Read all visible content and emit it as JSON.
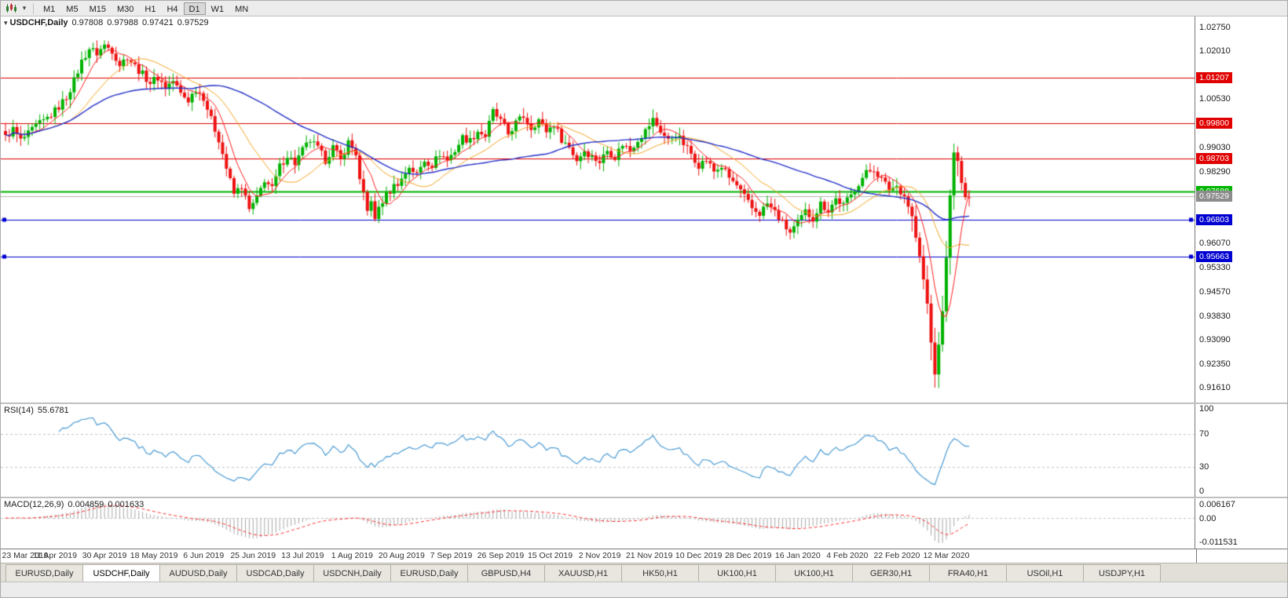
{
  "toolbar": {
    "icons": [
      {
        "name": "chart-type-icon"
      },
      {
        "name": "chevron-down-icon",
        "glyph": "▾"
      }
    ],
    "timeframes": [
      "M1",
      "M5",
      "M15",
      "M30",
      "H1",
      "H4",
      "D1",
      "W1",
      "MN"
    ],
    "active_timeframe": "D1"
  },
  "price_panel": {
    "symbol": "USDCHF,Daily",
    "marker_glyph": "▾",
    "ohlc": {
      "open": "0.97808",
      "high": "0.97988",
      "low": "0.97421",
      "close": "0.97529"
    },
    "scale_top": 1.0275,
    "scale_bottom": 0.9161,
    "axis_labels": [
      "1.02750",
      "1.02010",
      "1.00530",
      "0.99030",
      "0.98290",
      "0.96070",
      "0.95330",
      "0.94570",
      "0.93830",
      "0.93090",
      "0.92350",
      "0.91610"
    ],
    "levels": [
      {
        "value": 1.01207,
        "label": "1.01207",
        "color": "#e00000",
        "width": 1,
        "markers": false
      },
      {
        "value": 0.998,
        "label": "0.99800",
        "color": "#e00000",
        "width": 1,
        "markers": false
      },
      {
        "value": 0.98703,
        "label": "0.98703",
        "color": "#e00000",
        "width": 1,
        "markers": false
      },
      {
        "value": 0.97688,
        "label": "0.97688",
        "color": "#00b400",
        "width": 2,
        "markers": false
      },
      {
        "value": 0.96803,
        "label": "0.96803",
        "color": "#0000d0",
        "width": 1,
        "markers": true
      },
      {
        "value": 0.95663,
        "label": "0.95663",
        "color": "#0000d0",
        "width": 1,
        "markers": true
      }
    ],
    "current_price": {
      "value": 0.97529,
      "label": "0.97529",
      "line_color": "#b4b4b4",
      "badge_bg": "#8c8c8c"
    }
  },
  "rsi_panel": {
    "title": "RSI(14)",
    "value": "55.6781",
    "axis_labels": [
      "100",
      "70",
      "30",
      "0"
    ],
    "axis_values": [
      100,
      70,
      30,
      0
    ],
    "dashed_levels": [
      70,
      30
    ],
    "line_color": "#4a9bd4"
  },
  "macd_panel": {
    "title": "MACD(12,26,9)",
    "value_main": "0.004859",
    "value_signal": "0.001633",
    "axis_top": "0.006167",
    "axis_zero": "0.00",
    "axis_bottom": "-0.011531",
    "bar_color": "#a8a8a8",
    "signal_color": "#ff3030"
  },
  "date_axis": {
    "labels": [
      "23 Mar 2019",
      "11 Apr 2019",
      "30 Apr 2019",
      "18 May 2019",
      "6 Jun 2019",
      "25 Jun 2019",
      "13 Jul 2019",
      "1 Aug 2019",
      "20 Aug 2019",
      "7 Sep 2019",
      "26 Sep 2019",
      "15 Oct 2019",
      "2 Nov 2019",
      "21 Nov 2019",
      "10 Dec 2019",
      "28 Dec 2019",
      "16 Jan 2020",
      "4 Feb 2020",
      "22 Feb 2020",
      "12 Mar 2020"
    ]
  },
  "tabs": {
    "items": [
      "EURUSD,Daily",
      "USDCHF,Daily",
      "AUDUSD,Daily",
      "USDCAD,Daily",
      "USDCNH,Daily",
      "EURUSD,Daily",
      "GBPUSD,H4",
      "XAUUSD,H1",
      "HK50,H1",
      "UK100,H1",
      "UK100,H1",
      "GER30,H1",
      "FRA40,H1",
      "USOil,H1",
      "USDJPY,H1"
    ],
    "active_index": 1
  },
  "colors": {
    "candle_up": "#00b200",
    "candle_down": "#ee1111",
    "ma_fast": "#ff2020",
    "ma_mid": "#f5a623",
    "ma_slow": "#2430c8",
    "grid_dash": "#c4c4c4",
    "axis_text": "#1a1a1a",
    "chrome_bg": "#ececec"
  },
  "chart_data": {
    "type": "candlestick",
    "symbol": "USDCHF",
    "timeframe": "Daily",
    "title": "USDCHF,Daily 0.97808 0.97988 0.97421 0.97529",
    "x_labels": [
      "23 Mar 2019",
      "11 Apr 2019",
      "30 Apr 2019",
      "18 May 2019",
      "6 Jun 2019",
      "25 Jun 2019",
      "13 Jul 2019",
      "1 Aug 2019",
      "20 Aug 2019",
      "7 Sep 2019",
      "26 Sep 2019",
      "15 Oct 2019",
      "2 Nov 2019",
      "21 Nov 2019",
      "10 Dec 2019",
      "28 Dec 2019",
      "16 Jan 2020",
      "4 Feb 2020",
      "22 Feb 2020",
      "12 Mar 2020"
    ],
    "n_candles": 254,
    "candles_per_label": 13,
    "visible_price_range": [
      0.9161,
      1.0275
    ],
    "price_anchors": [
      [
        0,
        0.9935
      ],
      [
        2,
        0.996
      ],
      [
        4,
        0.9925
      ],
      [
        6,
        0.9945
      ],
      [
        8,
        0.997
      ],
      [
        10,
        0.9985
      ],
      [
        12,
        1.0005
      ],
      [
        14,
        1.003
      ],
      [
        16,
        1.006
      ],
      [
        18,
        1.011
      ],
      [
        20,
        1.017
      ],
      [
        22,
        1.021
      ],
      [
        24,
        1.0195
      ],
      [
        26,
        1.022
      ],
      [
        28,
        1.0205
      ],
      [
        30,
        1.016
      ],
      [
        32,
        1.0185
      ],
      [
        34,
        1.0155
      ],
      [
        36,
        1.013
      ],
      [
        38,
        1.0105
      ],
      [
        40,
        1.012
      ],
      [
        42,
        1.009
      ],
      [
        44,
        1.011
      ],
      [
        46,
        1.007
      ],
      [
        48,
        1.005
      ],
      [
        50,
        1.0085
      ],
      [
        52,
        1.006
      ],
      [
        54,
        0.999
      ],
      [
        56,
        0.993
      ],
      [
        58,
        0.984
      ],
      [
        60,
        0.976
      ],
      [
        62,
        0.9785
      ],
      [
        64,
        0.971
      ],
      [
        66,
        0.9745
      ],
      [
        68,
        0.9805
      ],
      [
        70,
        0.9775
      ],
      [
        72,
        0.9845
      ],
      [
        74,
        0.988
      ],
      [
        76,
        0.9855
      ],
      [
        78,
        0.9895
      ],
      [
        80,
        0.9925
      ],
      [
        82,
        0.99
      ],
      [
        84,
        0.9865
      ],
      [
        86,
        0.9905
      ],
      [
        88,
        0.9865
      ],
      [
        90,
        0.992
      ],
      [
        92,
        0.9885
      ],
      [
        93,
        0.98
      ],
      [
        94,
        0.9755
      ],
      [
        95,
        0.9705
      ],
      [
        96,
        0.9745
      ],
      [
        97,
        0.9675
      ],
      [
        98,
        0.972
      ],
      [
        100,
        0.9755
      ],
      [
        102,
        0.9785
      ],
      [
        104,
        0.9805
      ],
      [
        106,
        0.9845
      ],
      [
        108,
        0.982
      ],
      [
        110,
        0.9865
      ],
      [
        112,
        0.985
      ],
      [
        114,
        0.9885
      ],
      [
        116,
        0.9865
      ],
      [
        118,
        0.9895
      ],
      [
        120,
        0.9935
      ],
      [
        122,
        0.9925
      ],
      [
        124,
        0.9955
      ],
      [
        126,
        0.994
      ],
      [
        128,
        1.0015
      ],
      [
        130,
        0.9985
      ],
      [
        132,
        0.9945
      ],
      [
        134,
        0.998
      ],
      [
        136,
        1.0
      ],
      [
        138,
        0.9965
      ],
      [
        140,
        0.999
      ],
      [
        142,
        0.9955
      ],
      [
        144,
        0.9975
      ],
      [
        146,
        0.993
      ],
      [
        148,
        0.9905
      ],
      [
        150,
        0.9865
      ],
      [
        152,
        0.9895
      ],
      [
        154,
        0.9875
      ],
      [
        156,
        0.986
      ],
      [
        158,
        0.9895
      ],
      [
        160,
        0.9875
      ],
      [
        162,
        0.9915
      ],
      [
        164,
        0.9895
      ],
      [
        166,
        0.993
      ],
      [
        168,
        0.9955
      ],
      [
        170,
        0.999
      ],
      [
        172,
        0.9955
      ],
      [
        174,
        0.9925
      ],
      [
        176,
        0.9945
      ],
      [
        178,
        0.9915
      ],
      [
        180,
        0.9885
      ],
      [
        182,
        0.985
      ],
      [
        184,
        0.9865
      ],
      [
        186,
        0.983
      ],
      [
        188,
        0.9845
      ],
      [
        190,
        0.981
      ],
      [
        192,
        0.9785
      ],
      [
        194,
        0.975
      ],
      [
        196,
        0.9715
      ],
      [
        198,
        0.97
      ],
      [
        200,
        0.973
      ],
      [
        202,
        0.9705
      ],
      [
        204,
        0.967
      ],
      [
        206,
        0.964
      ],
      [
        208,
        0.967
      ],
      [
        210,
        0.9705
      ],
      [
        212,
        0.9685
      ],
      [
        214,
        0.973
      ],
      [
        216,
        0.971
      ],
      [
        218,
        0.9745
      ],
      [
        220,
        0.9725
      ],
      [
        222,
        0.9755
      ],
      [
        224,
        0.9795
      ],
      [
        226,
        0.9825
      ],
      [
        228,
        0.9838
      ],
      [
        230,
        0.9805
      ],
      [
        232,
        0.9775
      ],
      [
        234,
        0.9785
      ],
      [
        236,
        0.9755
      ],
      [
        238,
        0.969
      ],
      [
        239,
        0.9625
      ],
      [
        240,
        0.9565
      ],
      [
        241,
        0.9495
      ],
      [
        242,
        0.942
      ],
      [
        243,
        0.93
      ],
      [
        244,
        0.9205
      ],
      [
        245,
        0.929
      ],
      [
        246,
        0.94
      ],
      [
        247,
        0.956
      ],
      [
        248,
        0.976
      ],
      [
        249,
        0.9885
      ],
      [
        250,
        0.986
      ],
      [
        251,
        0.9795
      ],
      [
        252,
        0.9745
      ],
      [
        253,
        0.9753
      ]
    ],
    "wick_overrides": [
      {
        "index": 26,
        "high": 1.0228
      },
      {
        "index": 244,
        "low": 0.9161
      },
      {
        "index": 249,
        "high": 0.9905
      }
    ],
    "moving_averages": [
      {
        "name": "fast",
        "period": 7,
        "color": "#ff2020"
      },
      {
        "name": "mid",
        "period": 18,
        "color": "#f5a623"
      },
      {
        "name": "slow",
        "period": 50,
        "color": "#2430c8"
      }
    ],
    "indicators": {
      "rsi": {
        "period": 14,
        "last_value": 55.6781
      },
      "macd": {
        "fast": 12,
        "slow": 26,
        "signal": 9,
        "last_main": 0.004859,
        "last_signal": 0.001633
      }
    }
  }
}
